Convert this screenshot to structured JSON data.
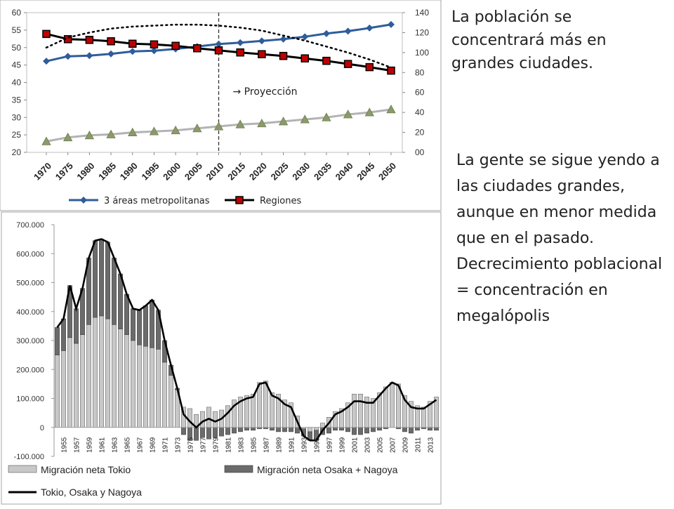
{
  "slide": {
    "text_top": "La población se concentrará más en grandes ciudades.",
    "text_bottom": "La gente se sigue yendo a las ciudades grandes, aunque en menor medida que en el pasado. Decrecimiento poblacional = concentración en megalópolis",
    "colors": {
      "metro": "#2f5d9a",
      "regiones": "#000000",
      "grey_series": "#b3b3b3",
      "grey_marker": "#8b9a6a",
      "tokyo_bar": "#c8c8c8",
      "osaka_bar": "#6b6b6b",
      "line": "#000000"
    }
  },
  "chart_data": [
    {
      "type": "line",
      "x": [
        "1970",
        "1975",
        "1980",
        "1985",
        "1990",
        "1995",
        "2000",
        "2005",
        "2010",
        "2015",
        "2020",
        "2025",
        "2030",
        "2035",
        "2040",
        "2045",
        "2050"
      ],
      "y_left_ticks": [
        "20",
        "25",
        "30",
        "35",
        "40",
        "45",
        "50",
        "55",
        "60"
      ],
      "y_right_ticks": [
        "00",
        "20",
        "40",
        "60",
        "80",
        "100",
        "120",
        "140"
      ],
      "ylim_left": [
        20,
        60
      ],
      "ylim_right": [
        0,
        140
      ],
      "series": [
        {
          "name": "3 áreas metropolitanas",
          "axis": "left",
          "marker": "diamond",
          "values": [
            46.1,
            47.5,
            47.7,
            48.2,
            48.9,
            49.1,
            49.6,
            50.3,
            51.0,
            51.4,
            51.9,
            52.4,
            53.1,
            54.0,
            54.7,
            55.6,
            56.6
          ]
        },
        {
          "name": "Regiones",
          "axis": "left",
          "marker": "square",
          "values": [
            53.9,
            52.4,
            52.2,
            51.8,
            51.1,
            50.9,
            50.5,
            49.8,
            49.2,
            48.6,
            48.1,
            47.6,
            46.9,
            46.2,
            45.3,
            44.4,
            43.4
          ]
        },
        {
          "axis": "right",
          "marker": "triangle",
          "values": [
            11,
            15,
            17,
            18,
            20,
            21,
            22,
            24,
            26,
            28,
            29,
            31,
            33,
            35,
            38,
            40,
            43
          ]
        },
        {
          "axis": "right",
          "style": "dotted",
          "values": [
            105,
            115,
            120,
            124,
            126,
            127,
            128,
            128,
            127,
            125,
            122,
            117,
            112,
            106,
            100,
            93,
            85
          ]
        }
      ],
      "divider_at": "2010",
      "annotation": "→ Proyección"
    },
    {
      "type": "bar",
      "y_ticks": [
        "700.000",
        "600.000",
        "500.000",
        "400.000",
        "300.000",
        "200.000",
        "100.000",
        "0",
        "-100.000"
      ],
      "ylim": [
        -100000,
        700000
      ],
      "x_labels": [
        "1955",
        "1957",
        "1959",
        "1961",
        "1963",
        "1965",
        "1967",
        "1969",
        "1971",
        "1973",
        "1975",
        "1977",
        "1979",
        "1981",
        "1983",
        "1985",
        "1987",
        "1989",
        "1991",
        "1993",
        "1995",
        "1997",
        "1999",
        "2001",
        "2003",
        "2005",
        "2007",
        "2009",
        "2011",
        "2013"
      ],
      "years": [
        1954,
        1955,
        1956,
        1957,
        1958,
        1959,
        1960,
        1961,
        1962,
        1963,
        1964,
        1965,
        1966,
        1967,
        1968,
        1969,
        1970,
        1971,
        1972,
        1973,
        1974,
        1975,
        1976,
        1977,
        1978,
        1979,
        1980,
        1981,
        1982,
        1983,
        1984,
        1985,
        1986,
        1987,
        1988,
        1989,
        1990,
        1991,
        1992,
        1993,
        1994,
        1995,
        1996,
        1997,
        1998,
        1999,
        2000,
        2001,
        2002,
        2003,
        2004,
        2005,
        2006,
        2007,
        2008,
        2009,
        2010,
        2011,
        2012,
        2013,
        2014
      ],
      "series": [
        {
          "name": "Migración neta Tokio",
          "type": "bar",
          "values": [
            250000,
            265000,
            310000,
            290000,
            320000,
            355000,
            380000,
            385000,
            375000,
            355000,
            340000,
            320000,
            300000,
            285000,
            280000,
            275000,
            270000,
            225000,
            180000,
            130000,
            70000,
            65000,
            45000,
            55000,
            70000,
            55000,
            60000,
            75000,
            95000,
            105000,
            110000,
            115000,
            155000,
            160000,
            120000,
            115000,
            95000,
            85000,
            40000,
            -5000,
            -15000,
            -10000,
            15000,
            35000,
            55000,
            65000,
            85000,
            115000,
            115000,
            105000,
            100000,
            120000,
            140000,
            155000,
            150000,
            110000,
            90000,
            75000,
            70000,
            90000,
            105000
          ]
        },
        {
          "name": "Migración neta Osaka + Nagoya",
          "type": "bar",
          "values": [
            95000,
            110000,
            180000,
            120000,
            160000,
            230000,
            265000,
            265000,
            265000,
            230000,
            190000,
            140000,
            110000,
            120000,
            140000,
            165000,
            135000,
            75000,
            35000,
            5000,
            -25000,
            -45000,
            -45000,
            -35000,
            -40000,
            -35000,
            -30000,
            -25000,
            -20000,
            -15000,
            -10000,
            -10000,
            -5000,
            -5000,
            -10000,
            -15000,
            -15000,
            -15000,
            -20000,
            -25000,
            -30000,
            -35000,
            -25000,
            -20000,
            -10000,
            -10000,
            -15000,
            -25000,
            -25000,
            -20000,
            -15000,
            -10000,
            -5000,
            0,
            -5000,
            -15000,
            -20000,
            -10000,
            -5000,
            -10000,
            -10000
          ]
        },
        {
          "name": "Tokio, Osaka y Nagoya",
          "type": "line",
          "values": [
            345000,
            375000,
            490000,
            410000,
            480000,
            585000,
            645000,
            650000,
            640000,
            585000,
            530000,
            460000,
            410000,
            405000,
            420000,
            440000,
            405000,
            300000,
            215000,
            135000,
            45000,
            20000,
            0,
            20000,
            30000,
            20000,
            30000,
            50000,
            75000,
            90000,
            100000,
            105000,
            150000,
            155000,
            110000,
            100000,
            80000,
            70000,
            20000,
            -30000,
            -45000,
            -45000,
            -10000,
            15000,
            45000,
            55000,
            70000,
            90000,
            90000,
            85000,
            85000,
            110000,
            135000,
            155000,
            145000,
            95000,
            70000,
            65000,
            65000,
            80000,
            95000
          ]
        }
      ]
    }
  ]
}
